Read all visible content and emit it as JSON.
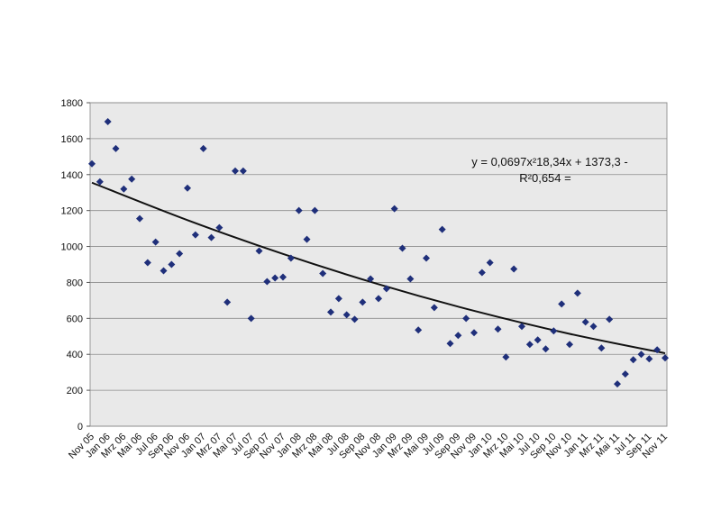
{
  "chart_data": {
    "type": "scatter",
    "categories": [
      "Nov 05",
      null,
      "Jan 06",
      null,
      "Mrz 06",
      null,
      "Mai 06",
      null,
      "Jul 06",
      null,
      "Sep 06",
      null,
      "Nov 06",
      null,
      "Jan 07",
      null,
      "Mrz 07",
      null,
      "Mai 07",
      null,
      "Jul 07",
      null,
      "Sep 07",
      null,
      "Nov 07",
      null,
      "Jan 08",
      null,
      "Mrz 08",
      null,
      "Mai 08",
      null,
      "Jul 08",
      null,
      "Sep 08",
      null,
      "Nov 08",
      null,
      "Jan 09",
      null,
      "Mrz 09",
      null,
      "Mai 09",
      null,
      "Jul 09",
      null,
      "Sep 09",
      null,
      "Nov 09",
      null,
      "Jan 10",
      null,
      "Mrz 10",
      null,
      "Mai 10",
      null,
      "Jul 10",
      null,
      "Sep 10",
      null,
      "Nov 10",
      null,
      "Jan 11",
      null,
      "Mrz 11",
      null,
      "Mai 11",
      null,
      "Jul 11",
      null,
      "Sep 11",
      null,
      "Nov 11"
    ],
    "values": [
      1460,
      1360,
      1695,
      1545,
      1320,
      1375,
      1155,
      910,
      1025,
      865,
      900,
      960,
      1325,
      1065,
      1545,
      1050,
      1105,
      690,
      1420,
      1420,
      600,
      975,
      805,
      825,
      830,
      935,
      1200,
      1040,
      1200,
      850,
      635,
      710,
      620,
      595,
      690,
      820,
      710,
      765,
      1210,
      990,
      820,
      535,
      935,
      660,
      1095,
      460,
      505,
      600,
      520,
      855,
      910,
      540,
      385,
      875,
      555,
      455,
      480,
      430,
      530,
      680,
      455,
      740,
      580,
      555,
      435,
      595,
      235,
      290,
      370,
      400,
      375,
      425,
      380
    ],
    "color": "#1f2f7a",
    "trendline": {
      "x": [
        0,
        12,
        24,
        36,
        48,
        60,
        72
      ],
      "values": [
        1355,
        1146.7,
        958.4,
        790.1,
        642,
        514,
        405.9
      ],
      "color": "#111111"
    },
    "annotations": [
      "y = 0,0697x²18,34x + 1373,3 -",
      "R²0,654 ="
    ],
    "ylim": [
      0,
      1800
    ],
    "yticks": [
      0,
      200,
      400,
      600,
      800,
      1000,
      1200,
      1400,
      1600,
      1800
    ],
    "grid": true
  }
}
